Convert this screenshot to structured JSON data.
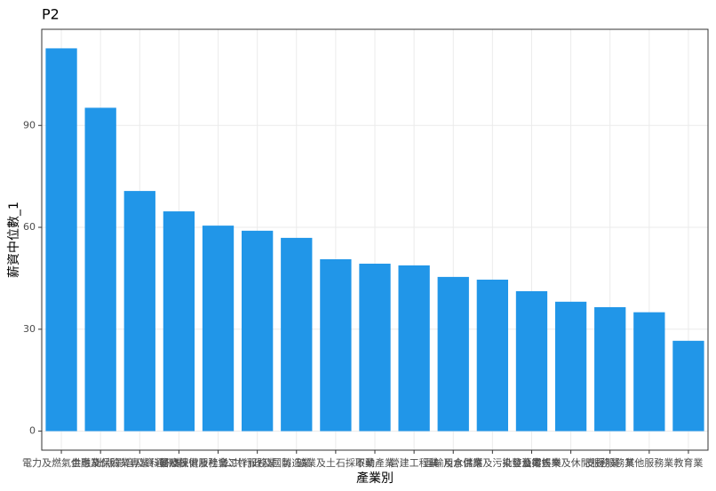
{
  "chart_data": {
    "type": "bar",
    "title": "P2",
    "x_label": "產業別",
    "y_label": "薪資中位數_1",
    "categories": [
      "電力及燃氣供應業",
      "金融及保險業",
      "出版影音及資通訊業",
      "專業科學及技術服務業",
      "醫療保健及社會工作服務業",
      "公共行政及國防",
      "製造業",
      "礦業及土石採取業",
      "不動產業",
      "營建工程業",
      "運輸及倉儲業",
      "用水供應及污染整治業",
      "批發及零售業",
      "藝術娛樂及休閒服務業",
      "支援服務業",
      "其他服務業",
      "教育業"
    ],
    "values": [
      112.7,
      95.2,
      70.7,
      64.7,
      60.5,
      59.0,
      56.9,
      50.6,
      49.3,
      48.8,
      45.4,
      44.6,
      41.2,
      38.1,
      36.5,
      35.0,
      26.6
    ],
    "color": "#2196e8",
    "ylim": [
      -5.6,
      118.3
    ],
    "yticks": [
      0,
      30,
      60,
      90
    ],
    "grid": true
  }
}
